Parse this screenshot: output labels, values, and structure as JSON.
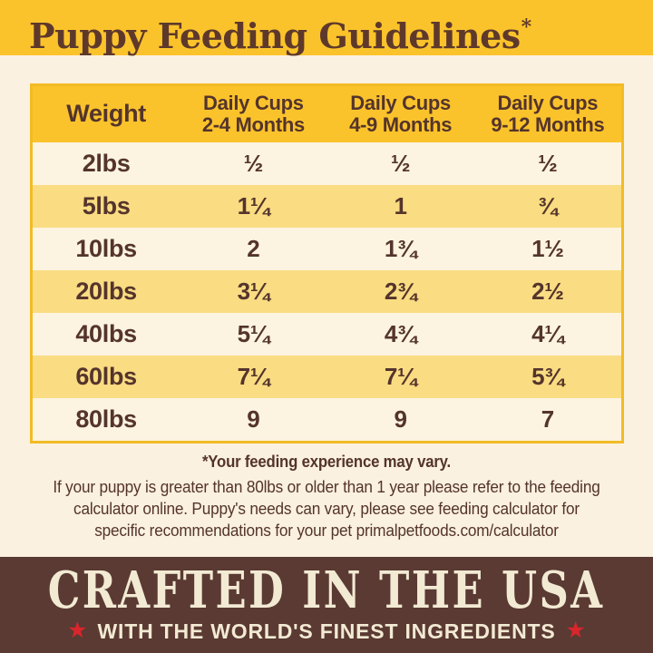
{
  "title": {
    "text": "Puppy Feeding Guidelines",
    "asterisk": "*"
  },
  "table": {
    "headers": {
      "weight": "Weight",
      "col1": {
        "line1": "Daily Cups",
        "line2": "2-4 Months"
      },
      "col2": {
        "line1": "Daily Cups",
        "line2": "4-9 Months"
      },
      "col3": {
        "line1": "Daily Cups",
        "line2": "9-12 Months"
      }
    },
    "rows": [
      {
        "weight": "2lbs",
        "c1": "½",
        "c2": "½",
        "c3": "½"
      },
      {
        "weight": "5lbs",
        "c1": "1¼",
        "c2": "1",
        "c3": "¾"
      },
      {
        "weight": "10lbs",
        "c1": "2",
        "c2": "1¾",
        "c3": "1½"
      },
      {
        "weight": "20lbs",
        "c1": "3¼",
        "c2": "2¾",
        "c3": "2½"
      },
      {
        "weight": "40lbs",
        "c1": "5¼",
        "c2": "4¾",
        "c3": "4¼"
      },
      {
        "weight": "60lbs",
        "c1": "7¼",
        "c2": "7¼",
        "c3": "5¾"
      },
      {
        "weight": "80lbs",
        "c1": "9",
        "c2": "9",
        "c3": "7"
      }
    ]
  },
  "footnote": {
    "bold": "*Your feeding experience may vary.",
    "lines": [
      "If your puppy is greater than 80lbs or older than 1 year please refer to the feeding",
      "calculator online. Puppy's needs can vary, please see feeding calculator for",
      "specific recommendations for your pet primalpetfoods.com/calculator"
    ]
  },
  "banner": {
    "title": "CRAFTED IN THE USA",
    "subtitle": "WITH THE WORLD'S FINEST INGREDIENTS",
    "star": "★"
  },
  "colors": {
    "band_gold": "#FBC32B",
    "row_gold": "#FADC82",
    "row_cream": "#FCF4E1",
    "page_cream": "#FBF1E0",
    "table_border_gold": "#F2BB26",
    "text_brown": "#54342C",
    "title_brown": "#5E392B",
    "banner_brown": "#5A3A33",
    "banner_cream": "#F3EAD3",
    "star_red": "#D8262C"
  }
}
